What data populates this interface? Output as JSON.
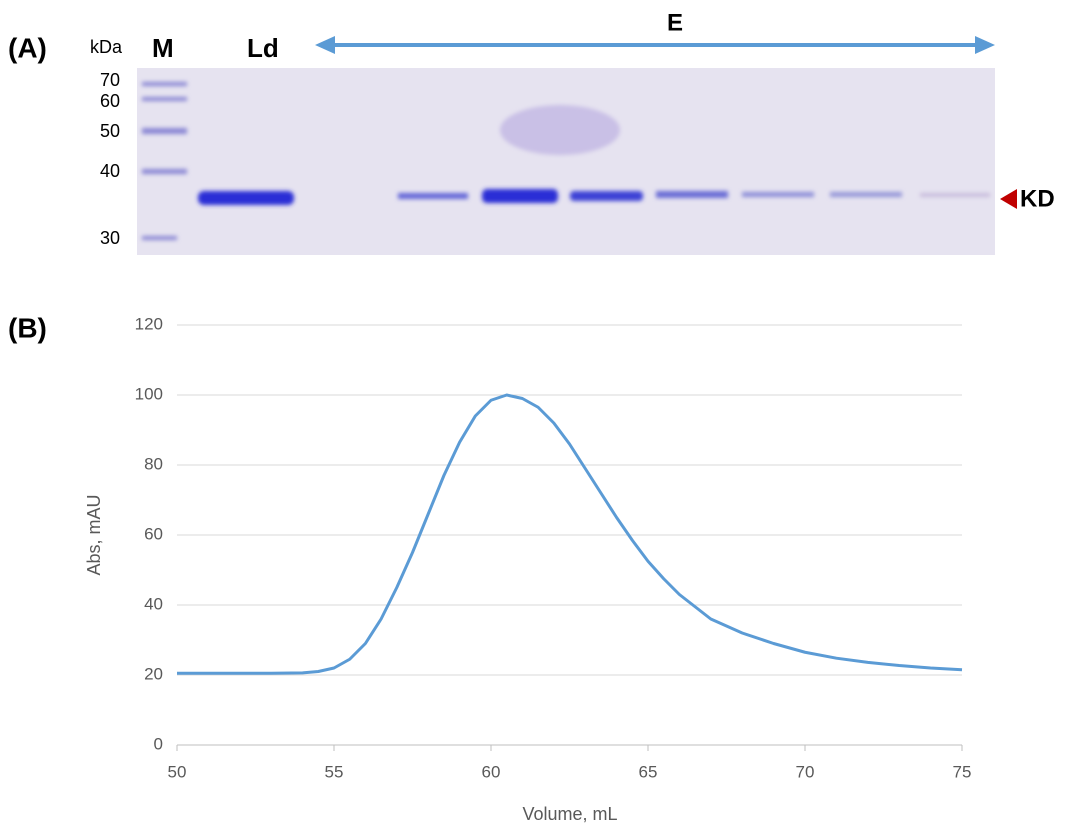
{
  "panel_a": {
    "label": "(A)",
    "unit": "kDa",
    "lanes": {
      "marker": "M",
      "load": "Ld",
      "elution": "E"
    },
    "marker_labels": [
      70,
      60,
      50,
      40,
      30
    ],
    "band_label": "KD"
  },
  "panel_b": {
    "label": "(B)"
  },
  "chart_data": {
    "type": "line",
    "x_label": "Volume, mL",
    "y_label": "Abs, mAU",
    "x": [
      50,
      53,
      54,
      54.5,
      55,
      55.5,
      56,
      56.5,
      57,
      57.5,
      58,
      58.5,
      59,
      59.5,
      60,
      60.5,
      61,
      61.5,
      62,
      62.5,
      63,
      63.5,
      64,
      64.5,
      65,
      65.5,
      66,
      67,
      68,
      69,
      70,
      71,
      72,
      73,
      74,
      75
    ],
    "series": [
      {
        "color": "#5b9bd5",
        "values": [
          20.5,
          20.5,
          20.6,
          21,
          22,
          24.5,
          29,
          36,
          45,
          55,
          66,
          77,
          86.5,
          94,
          98.5,
          100,
          99,
          96.5,
          92,
          86,
          79,
          72,
          65,
          58.5,
          52.5,
          47.5,
          43,
          36,
          32,
          29,
          26.5,
          24.8,
          23.6,
          22.7,
          22,
          21.5
        ]
      }
    ],
    "xlim": [
      50,
      75
    ],
    "ylim": [
      0,
      120
    ],
    "xticks": [
      50,
      55,
      60,
      65,
      70,
      75
    ],
    "yticks": [
      0,
      20,
      40,
      60,
      80,
      100,
      120
    ],
    "grid": true
  }
}
